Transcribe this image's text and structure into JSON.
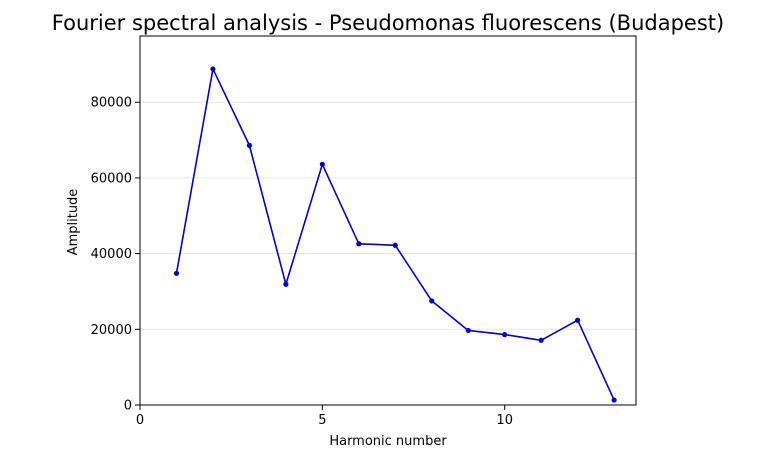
{
  "chart_data": {
    "type": "line",
    "title": "Fourier spectral analysis - Pseudomonas fluorescens (Budapest)",
    "xlabel": "Harmonic number",
    "ylabel": "Amplitude",
    "x": [
      1,
      2,
      3,
      4,
      5,
      6,
      7,
      8,
      9,
      10,
      11,
      12,
      13
    ],
    "series": [
      {
        "values": [
          34800,
          88800,
          68600,
          31900,
          63600,
          42600,
          42200,
          27500,
          19700,
          18600,
          17100,
          22400,
          1300
        ],
        "color": "#0000cc"
      }
    ],
    "xlim": [
      0,
      13.6
    ],
    "ylim": [
      0,
      97500
    ],
    "xticks": [
      0,
      5,
      10
    ],
    "yticks": [
      0,
      20000,
      40000,
      60000,
      80000
    ],
    "grid": "y-only, light",
    "grid_color": "#e6e6e6",
    "marker": "dot"
  }
}
